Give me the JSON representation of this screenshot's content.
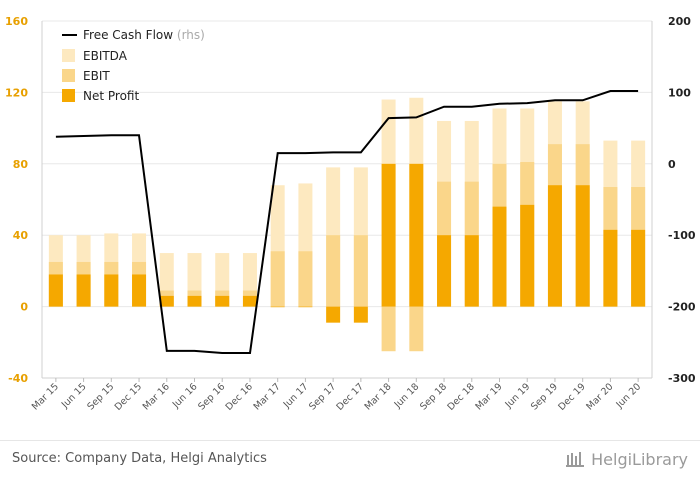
{
  "chart_data": {
    "type": "bar",
    "subtype": "overlapping bars with secondary-axis line",
    "categories": [
      "Mar 15",
      "Jun 15",
      "Sep 15",
      "Dec 15",
      "Mar 16",
      "Jun 16",
      "Sep 16",
      "Dec 16",
      "Mar 17",
      "Jun 17",
      "Sep 17",
      "Dec 17",
      "Mar 18",
      "Jun 18",
      "Sep 18",
      "Dec 18",
      "Mar 19",
      "Jun 19",
      "Sep 19",
      "Dec 19",
      "Mar 20",
      "Jun 20"
    ],
    "series": [
      {
        "name": "EBITDA",
        "type": "bar",
        "axis": "left",
        "color": "#fde9c0",
        "values": [
          40,
          40,
          41,
          41,
          30,
          30,
          30,
          30,
          68,
          69,
          78,
          78,
          116,
          117,
          104,
          104,
          111,
          111,
          115,
          115,
          93,
          93
        ]
      },
      {
        "name": "EBIT",
        "type": "bar",
        "axis": "left",
        "color": "#fad68a",
        "values": [
          25,
          25,
          25,
          25,
          9,
          9,
          9,
          9,
          31,
          31,
          40,
          40,
          -25,
          -25,
          70,
          70,
          80,
          81,
          91,
          91,
          67,
          67
        ]
      },
      {
        "name": "Net Profit",
        "type": "bar",
        "axis": "left",
        "color": "#f5a800",
        "values": [
          18,
          18,
          18,
          18,
          6,
          6,
          6,
          6,
          0,
          0,
          -9,
          -9,
          80,
          80,
          40,
          40,
          56,
          57,
          68,
          68,
          43,
          43
        ]
      },
      {
        "name": "Free Cash Flow",
        "note": "(rhs)",
        "type": "line",
        "axis": "right",
        "color": "#000000",
        "values": [
          38,
          39,
          40,
          40,
          -262,
          -262,
          -265,
          -265,
          15,
          15,
          16,
          16,
          64,
          65,
          80,
          80,
          84,
          85,
          89,
          89,
          102,
          102
        ]
      }
    ],
    "y_left": {
      "ticks": [
        -40,
        0,
        40,
        80,
        120,
        160
      ],
      "ylim": [
        -40,
        160
      ]
    },
    "y_right": {
      "ticks": [
        -300,
        -200,
        -100,
        0,
        100,
        200
      ],
      "ylim": [
        -300,
        200
      ]
    },
    "legend": {
      "position": "top-left"
    },
    "grid": {
      "horizontal": true,
      "color": "#e8e8e8"
    }
  },
  "footer": {
    "source": "Source: Company Data, Helgi Analytics",
    "brand": "HelgiLibrary"
  }
}
